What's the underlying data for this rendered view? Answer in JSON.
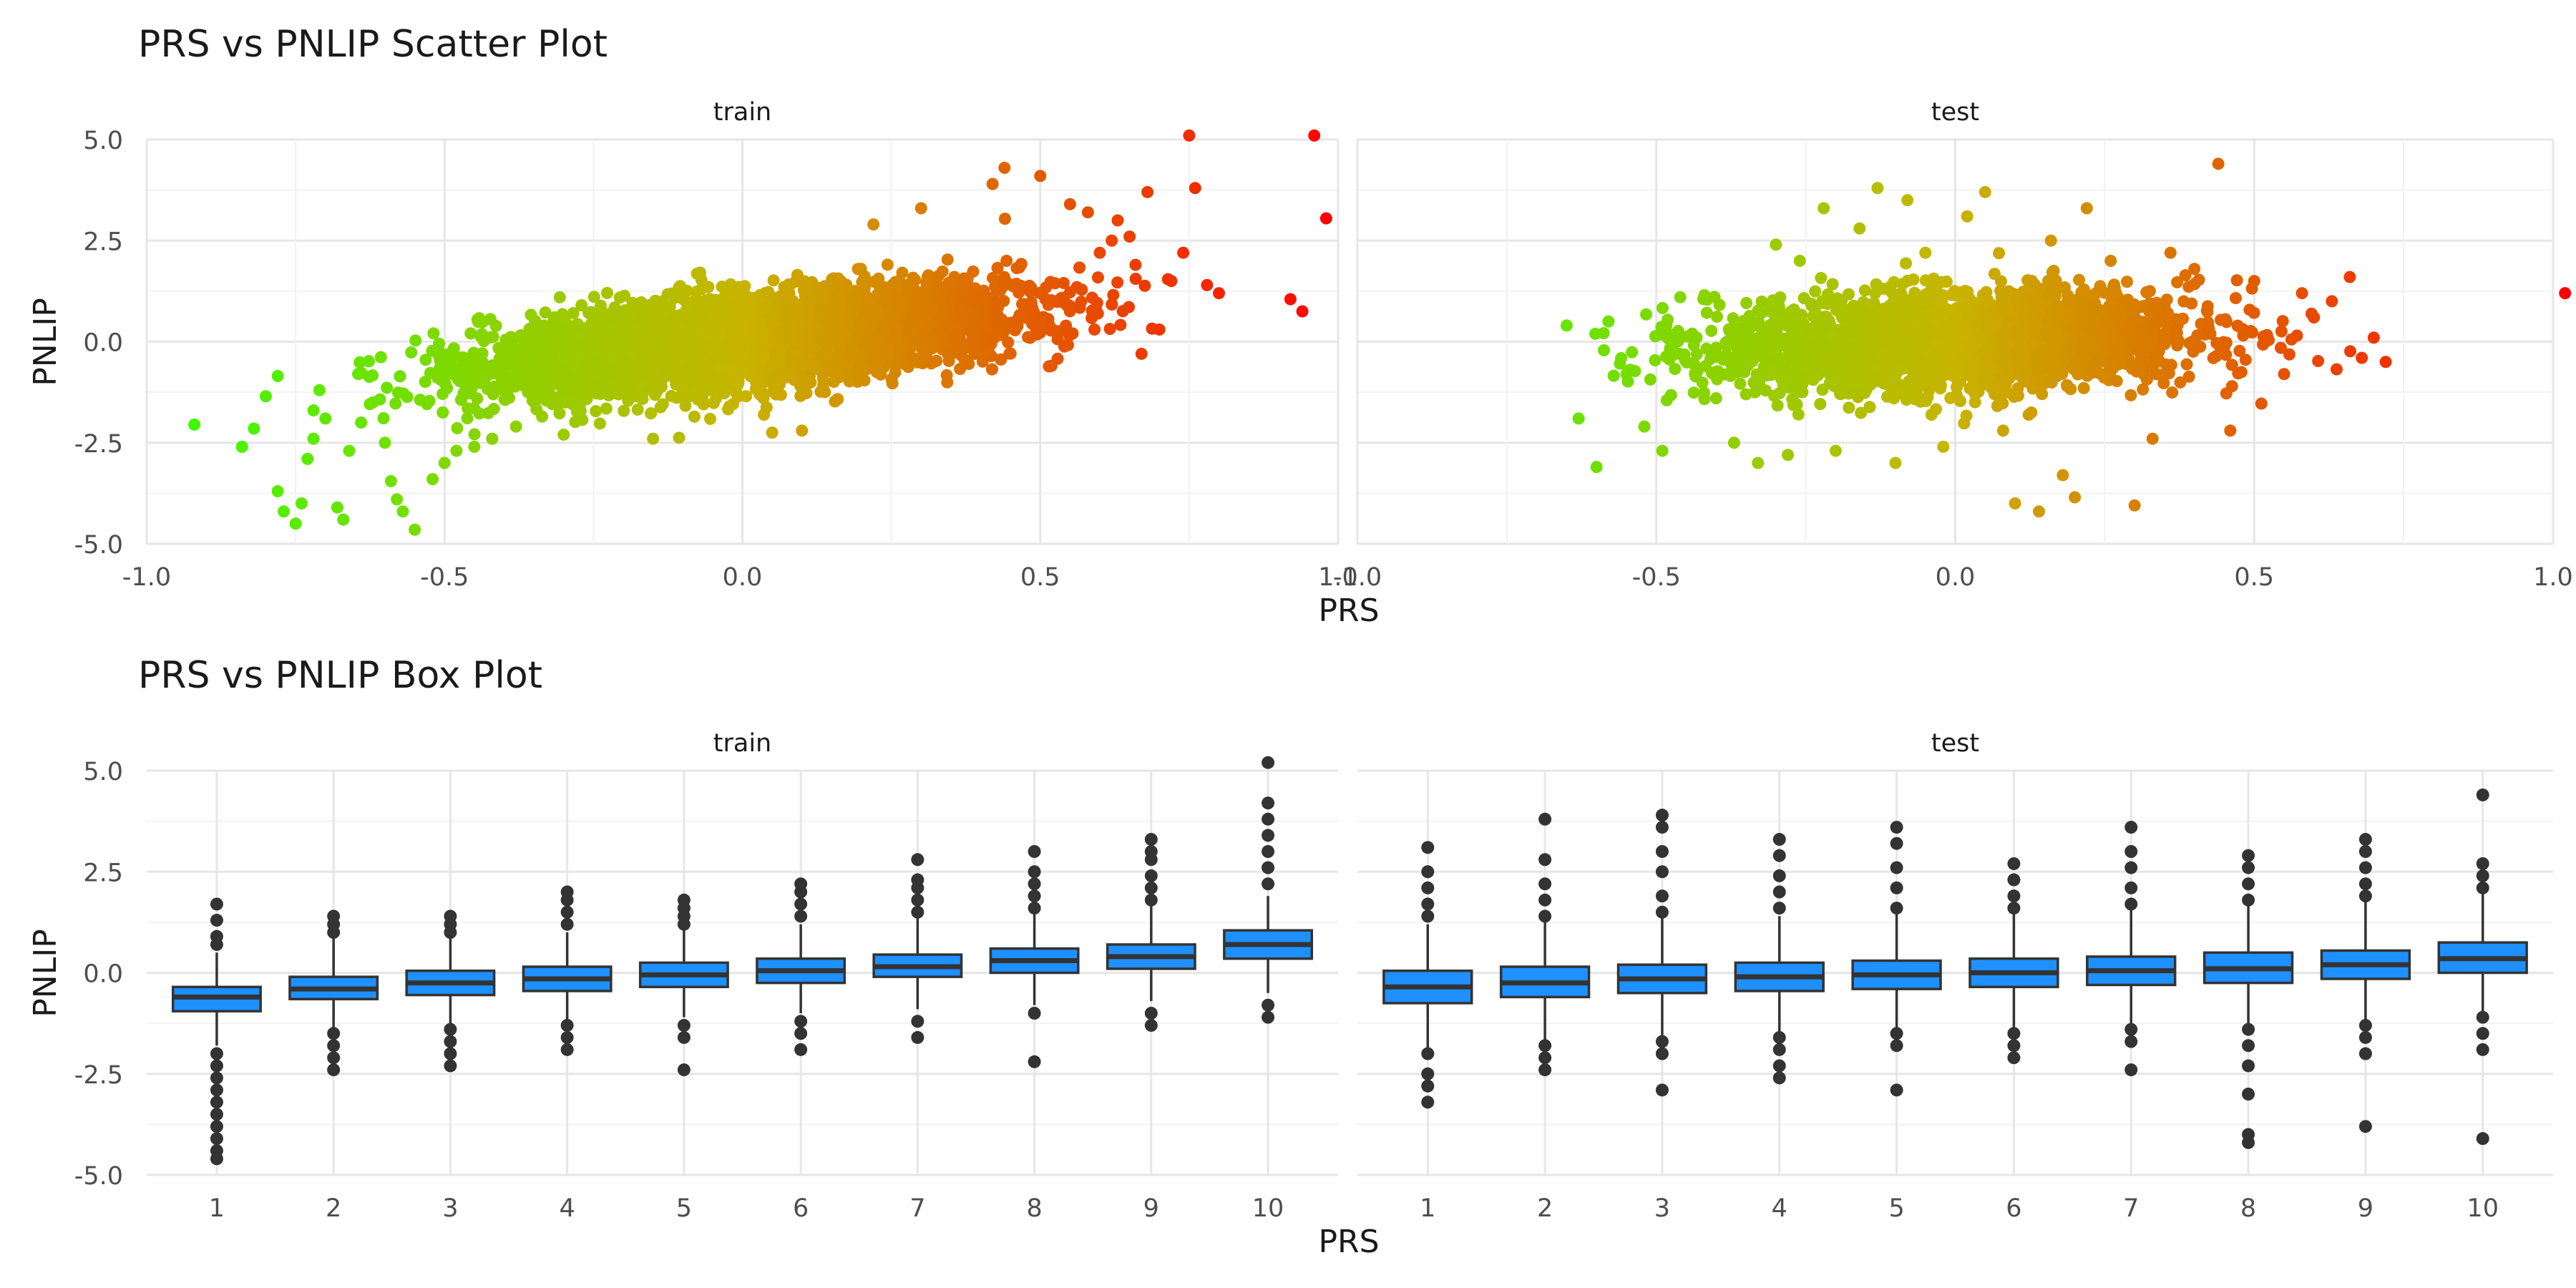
{
  "chart_data": [
    {
      "type": "scatter",
      "title": "PRS vs PNLIP Scatter Plot",
      "xlabel": "PRS",
      "ylabel": "PNLIP",
      "xlim": [
        -1.0,
        1.0
      ],
      "ylim": [
        -5.0,
        5.0
      ],
      "x_ticks": [
        "-1.0",
        "-0.5",
        "0.0",
        "0.5",
        "1.0"
      ],
      "y_ticks": [
        "5.0",
        "2.5",
        "0.0",
        "-2.5",
        "-5.0"
      ],
      "grid": true,
      "color_scale": {
        "low": "#33ff00",
        "mid": "#c8b400",
        "high": "#ff0000",
        "by": "PRS"
      },
      "panels": [
        {
          "name": "train",
          "points": [
            [
              -0.92,
              -2.05
            ],
            [
              -0.84,
              -2.6
            ],
            [
              -0.82,
              -2.15
            ],
            [
              -0.8,
              -1.35
            ],
            [
              -0.78,
              -0.85
            ],
            [
              -0.78,
              -3.7
            ],
            [
              -0.77,
              -4.2
            ],
            [
              -0.75,
              -4.5
            ],
            [
              -0.74,
              -4.0
            ],
            [
              -0.73,
              -2.9
            ],
            [
              -0.72,
              -2.4
            ],
            [
              -0.72,
              -1.7
            ],
            [
              -0.71,
              -1.2
            ],
            [
              -0.7,
              -1.9
            ],
            [
              -0.68,
              -4.1
            ],
            [
              -0.67,
              -4.4
            ],
            [
              -0.66,
              -2.7
            ],
            [
              -0.64,
              -2.0
            ],
            [
              -0.62,
              -1.5
            ],
            [
              -0.6,
              -2.5
            ],
            [
              -0.59,
              -3.45
            ],
            [
              -0.58,
              -3.9
            ],
            [
              -0.57,
              -4.2
            ],
            [
              -0.55,
              -4.65
            ],
            [
              -0.52,
              -3.4
            ],
            [
              -0.5,
              -3.0
            ],
            [
              -0.48,
              -2.7
            ],
            [
              -0.45,
              -2.6
            ],
            [
              -0.42,
              -2.4
            ],
            [
              -0.38,
              -2.1
            ],
            [
              -0.3,
              -2.3
            ],
            [
              -0.27,
              0.9
            ],
            [
              -0.15,
              -2.4
            ],
            [
              0.05,
              -2.25
            ],
            [
              0.1,
              -2.2
            ],
            [
              0.22,
              2.9
            ],
            [
              0.3,
              3.3
            ],
            [
              0.38,
              -0.55
            ],
            [
              0.42,
              3.9
            ],
            [
              0.44,
              4.3
            ],
            [
              0.5,
              4.1
            ],
            [
              0.55,
              3.4
            ],
            [
              0.58,
              3.2
            ],
            [
              0.6,
              2.2
            ],
            [
              0.62,
              2.5
            ],
            [
              0.63,
              3.0
            ],
            [
              0.65,
              2.6
            ],
            [
              0.66,
              1.9
            ],
            [
              0.67,
              -0.3
            ],
            [
              0.68,
              3.7
            ],
            [
              0.7,
              0.3
            ],
            [
              0.72,
              1.5
            ],
            [
              0.74,
              2.2
            ],
            [
              0.75,
              5.1
            ],
            [
              0.76,
              3.8
            ],
            [
              0.78,
              1.4
            ],
            [
              0.8,
              1.2
            ],
            [
              0.92,
              1.05
            ],
            [
              0.94,
              0.75
            ],
            [
              0.96,
              5.1
            ],
            [
              0.98,
              3.05
            ]
          ]
        },
        {
          "name": "test",
          "points": [
            [
              -0.65,
              0.4
            ],
            [
              -0.63,
              -1.9
            ],
            [
              -0.6,
              -3.1
            ],
            [
              -0.58,
              0.5
            ],
            [
              -0.55,
              -0.8
            ],
            [
              -0.52,
              -2.1
            ],
            [
              -0.49,
              -2.7
            ],
            [
              -0.46,
              1.1
            ],
            [
              -0.44,
              0.2
            ],
            [
              -0.4,
              -1.4
            ],
            [
              -0.37,
              -2.5
            ],
            [
              -0.35,
              -1.3
            ],
            [
              -0.33,
              -3.0
            ],
            [
              -0.3,
              2.4
            ],
            [
              -0.28,
              -2.8
            ],
            [
              -0.26,
              2.0
            ],
            [
              -0.22,
              3.3
            ],
            [
              -0.2,
              -2.7
            ],
            [
              -0.16,
              2.8
            ],
            [
              -0.13,
              3.8
            ],
            [
              -0.1,
              -3.0
            ],
            [
              -0.08,
              3.5
            ],
            [
              -0.05,
              2.2
            ],
            [
              -0.02,
              -2.6
            ],
            [
              0.02,
              3.1
            ],
            [
              0.05,
              3.7
            ],
            [
              0.08,
              -2.2
            ],
            [
              0.1,
              -4.0
            ],
            [
              0.14,
              -4.2
            ],
            [
              0.16,
              2.5
            ],
            [
              0.18,
              -3.3
            ],
            [
              0.2,
              -3.85
            ],
            [
              0.22,
              3.3
            ],
            [
              0.26,
              2.0
            ],
            [
              0.3,
              -4.05
            ],
            [
              0.33,
              -2.4
            ],
            [
              0.36,
              2.2
            ],
            [
              0.4,
              1.8
            ],
            [
              0.44,
              4.4
            ],
            [
              0.46,
              -2.2
            ],
            [
              0.5,
              1.5
            ],
            [
              0.55,
              -0.8
            ],
            [
              0.58,
              1.2
            ],
            [
              0.6,
              0.6
            ],
            [
              0.63,
              1.0
            ],
            [
              0.66,
              1.6
            ],
            [
              0.68,
              -0.4
            ],
            [
              0.7,
              0.1
            ],
            [
              0.72,
              -0.5
            ],
            [
              1.02,
              1.2
            ]
          ]
        }
      ]
    },
    {
      "type": "box",
      "title": "PRS vs PNLIP Box Plot",
      "xlabel": "PRS",
      "ylabel": "PNLIP",
      "categories": [
        "1",
        "2",
        "3",
        "4",
        "5",
        "6",
        "7",
        "8",
        "9",
        "10"
      ],
      "ylim": [
        -5.0,
        5.0
      ],
      "y_ticks": [
        "5.0",
        "2.5",
        "0.0",
        "-2.5",
        "-5.0"
      ],
      "grid": true,
      "box_color": "#1e90ff",
      "panels": [
        {
          "name": "train",
          "boxes": [
            {
              "q1": -0.95,
              "median": -0.6,
              "q3": -0.35,
              "lo": -1.8,
              "hi": 0.5,
              "outliers": [
                0.7,
                0.9,
                1.3,
                1.7,
                -2.0,
                -2.3,
                -2.6,
                -2.9,
                -3.2,
                -3.5,
                -3.8,
                -4.1,
                -4.4,
                -4.6
              ]
            },
            {
              "q1": -0.65,
              "median": -0.4,
              "q3": -0.1,
              "lo": -1.4,
              "hi": 0.9,
              "outliers": [
                1.0,
                1.2,
                1.4,
                -1.5,
                -1.8,
                -2.1,
                -2.4
              ]
            },
            {
              "q1": -0.55,
              "median": -0.25,
              "q3": 0.05,
              "lo": -1.3,
              "hi": 0.9,
              "outliers": [
                1.0,
                1.2,
                1.4,
                -1.4,
                -1.7,
                -2.0,
                -2.3
              ]
            },
            {
              "q1": -0.45,
              "median": -0.15,
              "q3": 0.15,
              "lo": -1.2,
              "hi": 1.0,
              "outliers": [
                1.2,
                1.5,
                1.8,
                2.0,
                -1.3,
                -1.6,
                -1.9
              ]
            },
            {
              "q1": -0.35,
              "median": -0.05,
              "q3": 0.25,
              "lo": -1.1,
              "hi": 1.1,
              "outliers": [
                1.2,
                1.4,
                1.6,
                1.8,
                -1.3,
                -1.6,
                -2.4
              ]
            },
            {
              "q1": -0.25,
              "median": 0.05,
              "q3": 0.35,
              "lo": -1.0,
              "hi": 1.2,
              "outliers": [
                1.4,
                1.7,
                2.0,
                2.2,
                -1.2,
                -1.5,
                -1.9
              ]
            },
            {
              "q1": -0.1,
              "median": 0.15,
              "q3": 0.45,
              "lo": -0.9,
              "hi": 1.4,
              "outliers": [
                1.5,
                1.8,
                2.1,
                2.3,
                2.8,
                -1.2,
                -1.6
              ]
            },
            {
              "q1": 0.0,
              "median": 0.3,
              "q3": 0.6,
              "lo": -0.8,
              "hi": 1.5,
              "outliers": [
                1.6,
                1.9,
                2.2,
                2.5,
                3.0,
                -1.0,
                -2.2
              ]
            },
            {
              "q1": 0.1,
              "median": 0.4,
              "q3": 0.7,
              "lo": -0.7,
              "hi": 1.7,
              "outliers": [
                1.8,
                2.1,
                2.4,
                2.8,
                3.0,
                3.3,
                -1.0,
                -1.3
              ]
            },
            {
              "q1": 0.35,
              "median": 0.7,
              "q3": 1.05,
              "lo": -0.5,
              "hi": 1.9,
              "outliers": [
                2.2,
                2.6,
                3.0,
                3.4,
                3.8,
                4.2,
                5.2,
                -0.8,
                -1.1
              ]
            }
          ]
        },
        {
          "name": "test",
          "boxes": [
            {
              "q1": -0.75,
              "median": -0.35,
              "q3": 0.05,
              "lo": -1.9,
              "hi": 1.2,
              "outliers": [
                1.4,
                1.7,
                2.1,
                2.5,
                3.1,
                -2.0,
                -2.5,
                -2.8,
                -3.2
              ]
            },
            {
              "q1": -0.6,
              "median": -0.25,
              "q3": 0.15,
              "lo": -1.7,
              "hi": 1.3,
              "outliers": [
                1.4,
                1.8,
                2.2,
                2.8,
                3.8,
                -1.8,
                -2.1,
                -2.4
              ]
            },
            {
              "q1": -0.5,
              "median": -0.15,
              "q3": 0.2,
              "lo": -1.6,
              "hi": 1.4,
              "outliers": [
                1.5,
                1.9,
                2.5,
                3.0,
                3.6,
                3.9,
                -1.7,
                -2.0,
                -2.9
              ]
            },
            {
              "q1": -0.45,
              "median": -0.1,
              "q3": 0.25,
              "lo": -1.5,
              "hi": 1.4,
              "outliers": [
                1.6,
                2.0,
                2.4,
                2.9,
                3.3,
                -1.6,
                -1.9,
                -2.3,
                -2.6
              ]
            },
            {
              "q1": -0.4,
              "median": -0.05,
              "q3": 0.3,
              "lo": -1.4,
              "hi": 1.5,
              "outliers": [
                1.6,
                2.1,
                2.6,
                3.2,
                3.6,
                -1.5,
                -1.8,
                -2.9
              ]
            },
            {
              "q1": -0.35,
              "median": 0.0,
              "q3": 0.35,
              "lo": -1.4,
              "hi": 1.5,
              "outliers": [
                1.6,
                1.9,
                2.3,
                2.7,
                -1.5,
                -1.8,
                -2.1
              ]
            },
            {
              "q1": -0.3,
              "median": 0.05,
              "q3": 0.4,
              "lo": -1.3,
              "hi": 1.6,
              "outliers": [
                1.7,
                2.1,
                2.6,
                3.0,
                3.6,
                -1.4,
                -1.7,
                -2.4
              ]
            },
            {
              "q1": -0.25,
              "median": 0.1,
              "q3": 0.5,
              "lo": -1.3,
              "hi": 1.7,
              "outliers": [
                1.8,
                2.2,
                2.6,
                2.9,
                -1.4,
                -1.8,
                -2.3,
                -3.0,
                -4.0,
                -4.2
              ]
            },
            {
              "q1": -0.15,
              "median": 0.2,
              "q3": 0.55,
              "lo": -1.2,
              "hi": 1.8,
              "outliers": [
                1.9,
                2.2,
                2.6,
                3.0,
                3.3,
                -1.3,
                -1.6,
                -2.0,
                -3.8
              ]
            },
            {
              "q1": 0.0,
              "median": 0.35,
              "q3": 0.75,
              "lo": -1.0,
              "hi": 2.0,
              "outliers": [
                2.1,
                2.4,
                2.7,
                4.4,
                -1.1,
                -1.5,
                -1.9,
                -4.1
              ]
            }
          ]
        }
      ]
    }
  ]
}
